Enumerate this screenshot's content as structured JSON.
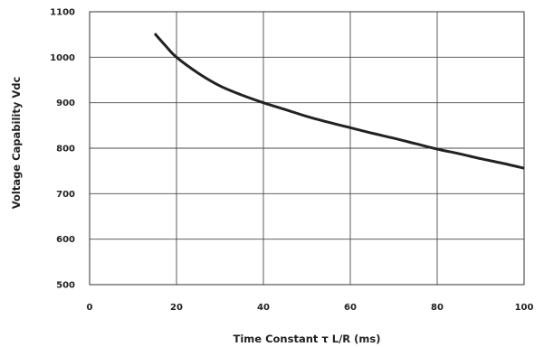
{
  "chart_data": {
    "type": "line",
    "title": "",
    "xlabel": "Time Constant τ L/R (ms)",
    "ylabel": "Voltage Capability Vdc",
    "xlim": [
      0,
      100
    ],
    "ylim": [
      500,
      1100
    ],
    "x_ticks": [
      "0",
      "20",
      "40",
      "60",
      "80",
      "100"
    ],
    "y_ticks": [
      "500",
      "600",
      "700",
      "800",
      "900",
      "1000",
      "1100"
    ],
    "grid": true,
    "series": [
      {
        "x": [
          15,
          17.5,
          20,
          25,
          30,
          35,
          40,
          45,
          50,
          55,
          60,
          65,
          70,
          75,
          80,
          85,
          90,
          95,
          100
        ],
        "y": [
          1052,
          1025,
          1000,
          965,
          937,
          917,
          900,
          885,
          870,
          857,
          845,
          833,
          822,
          810,
          798,
          788,
          777,
          767,
          756
        ],
        "color": "#222222"
      }
    ]
  }
}
